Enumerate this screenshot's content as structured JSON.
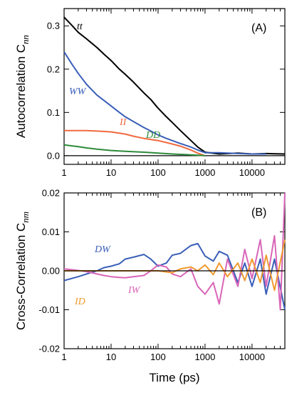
{
  "chart_data": [
    {
      "type": "line",
      "panel_label": "(A)",
      "ylabel": "Autocorrelation C",
      "ylabel_sub": "nn",
      "xlabel": "",
      "xscale": "log",
      "xlim": [
        1,
        50000
      ],
      "ylim": [
        -0.02,
        0.34
      ],
      "xticks": [
        1,
        10,
        100,
        1000,
        10000
      ],
      "xtick_labels": [
        "1",
        "10",
        "100",
        "1000",
        "10000"
      ],
      "yticks": [
        0.0,
        0.1,
        0.2,
        0.3
      ],
      "ytick_labels": [
        "0.0",
        "0.1",
        "0.2",
        "0.3"
      ],
      "zero_line": true,
      "series": [
        {
          "name": "tt",
          "color": "#000000",
          "x": [
            1,
            1.5,
            2,
            3,
            5,
            7,
            10,
            15,
            20,
            30,
            50,
            70,
            100,
            150,
            200,
            300,
            500,
            700,
            1000,
            2000,
            5000,
            10000,
            20000,
            50000
          ],
          "y": [
            0.32,
            0.3,
            0.285,
            0.27,
            0.25,
            0.235,
            0.22,
            0.2,
            0.188,
            0.17,
            0.145,
            0.13,
            0.11,
            0.09,
            0.077,
            0.058,
            0.035,
            0.02,
            0.008,
            0.004,
            0.006,
            0.004,
            0.005,
            0.004
          ]
        },
        {
          "name": "WW",
          "color": "#3a5fb8",
          "x": [
            1,
            1.5,
            2,
            3,
            5,
            7,
            10,
            15,
            20,
            30,
            50,
            70,
            100,
            150,
            200,
            300,
            500,
            700,
            1000,
            2000,
            5000,
            10000,
            20000
          ],
          "y": [
            0.24,
            0.21,
            0.19,
            0.165,
            0.14,
            0.128,
            0.115,
            0.1,
            0.09,
            0.079,
            0.065,
            0.057,
            0.048,
            0.04,
            0.035,
            0.028,
            0.02,
            0.013,
            0.007,
            0.007,
            0.005,
            0.004,
            0.004
          ]
        },
        {
          "name": "II",
          "color": "#f06a40",
          "x": [
            1,
            2,
            3,
            5,
            10,
            20,
            30,
            50,
            100,
            200,
            300,
            500,
            700,
            1000
          ],
          "y": [
            0.058,
            0.058,
            0.058,
            0.057,
            0.055,
            0.05,
            0.045,
            0.04,
            0.035,
            0.027,
            0.022,
            0.013,
            0.006,
            0.0
          ]
        },
        {
          "name": "DD",
          "color": "#2e8b3a",
          "x": [
            1,
            2,
            3,
            5,
            10,
            20,
            50,
            100,
            200,
            500,
            700,
            1000
          ],
          "y": [
            0.025,
            0.021,
            0.018,
            0.015,
            0.012,
            0.01,
            0.008,
            0.006,
            0.004,
            0.002,
            0.001,
            0.0
          ]
        }
      ]
    },
    {
      "type": "line",
      "panel_label": "(B)",
      "ylabel": "Cross-Correlation C",
      "ylabel_sub": "nm",
      "xlabel": "Time (ps)",
      "xscale": "log",
      "xlim": [
        1,
        50000
      ],
      "ylim": [
        -0.02,
        0.02
      ],
      "xticks": [
        1,
        10,
        100,
        1000,
        10000
      ],
      "xtick_labels": [
        "1",
        "10",
        "100",
        "1000",
        "10000"
      ],
      "yticks": [
        -0.02,
        -0.01,
        0.0,
        0.01,
        0.02
      ],
      "ytick_labels": [
        "-0.02",
        "-0.01",
        "0.00",
        "0.01",
        "0.02"
      ],
      "zero_line": true,
      "series": [
        {
          "name": "DW",
          "color": "#3a5fb8",
          "x": [
            1,
            2,
            3,
            5,
            7,
            10,
            15,
            20,
            30,
            50,
            70,
            100,
            150,
            200,
            300,
            500,
            700,
            1000,
            1500,
            2000,
            3000,
            5000,
            7000,
            10000,
            15000,
            20000,
            30000,
            50000
          ],
          "y": [
            -0.0025,
            -0.0015,
            -0.0008,
            0.0,
            0.0008,
            0.0012,
            0.0018,
            0.003,
            0.0035,
            0.0042,
            0.003,
            0.0012,
            0.002,
            0.004,
            0.0045,
            0.0065,
            0.007,
            0.0038,
            0.0025,
            0.005,
            0.004,
            -0.003,
            0.002,
            -0.004,
            0.003,
            -0.006,
            0.003,
            -0.01
          ]
        },
        {
          "name": "IW",
          "color": "#d965b8",
          "x": [
            1,
            2,
            3,
            5,
            7,
            10,
            15,
            20,
            30,
            50,
            70,
            100,
            150,
            200,
            300,
            500,
            700,
            1000,
            1500,
            2000,
            3000,
            5000,
            7000,
            10000,
            15000,
            20000,
            30000,
            40000,
            50000
          ],
          "y": [
            0.0005,
            0.0001,
            -0.0002,
            -0.0008,
            -0.0012,
            -0.0015,
            -0.0017,
            -0.0018,
            -0.0015,
            -0.0012,
            0.0,
            0.0015,
            0.001,
            -0.0008,
            -0.0015,
            0.0005,
            -0.004,
            -0.006,
            -0.003,
            -0.0085,
            0.003,
            -0.004,
            0.0055,
            -0.002,
            0.008,
            -0.004,
            0.009,
            -0.01,
            0.02
          ]
        },
        {
          "name": "ID",
          "color": "#f09a30",
          "x": [
            1,
            2,
            5,
            10,
            20,
            50,
            100,
            200,
            300,
            500,
            700,
            1000,
            1500,
            2000,
            3000,
            5000,
            7000,
            10000,
            15000,
            20000,
            30000,
            50000
          ],
          "y": [
            0.0,
            0.0,
            0.0,
            0.0,
            0.0,
            0.0,
            0.0,
            -0.0005,
            0.0005,
            0.001,
            0.0,
            0.0015,
            -0.001,
            0.002,
            -0.0015,
            0.002,
            -0.0025,
            0.003,
            -0.003,
            0.004,
            -0.005,
            0.008
          ]
        }
      ]
    }
  ]
}
